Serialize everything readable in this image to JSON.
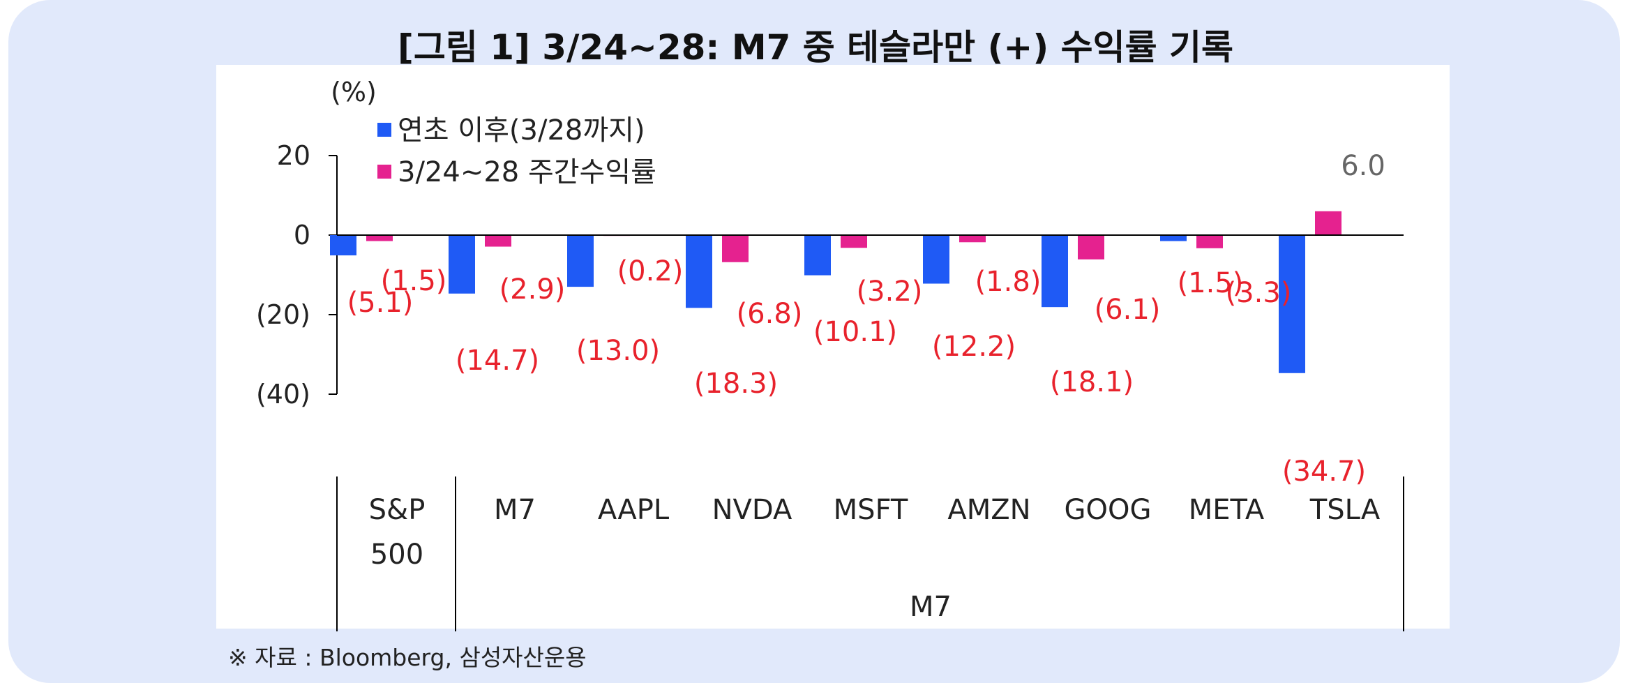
{
  "title": "[그림 1] 3/24~28: M7 중 테슬라만 (+) 수익률 기록",
  "source": "※ 자료 : Bloomberg, 삼성자산운용",
  "colors": {
    "background": "#e1e9fb",
    "ytd": "#1f5af5",
    "weekly": "#e5228f",
    "label": "#e8222c",
    "positive_label": "#666666"
  },
  "chart_data": {
    "type": "bar",
    "unit_label": "(%)",
    "ylim": [
      -40,
      20
    ],
    "yticks": [
      {
        "value": 20,
        "label": "20"
      },
      {
        "value": 0,
        "label": "0"
      },
      {
        "value": -20,
        "label": "(20)"
      },
      {
        "value": -40,
        "label": "(40)"
      }
    ],
    "categories": [
      "S&P 500",
      "M7",
      "AAPL",
      "NVDA",
      "MSFT",
      "AMZN",
      "GOOG",
      "META",
      "TSLA"
    ],
    "category_lines": [
      [
        "S&P",
        "500"
      ],
      [
        "M7"
      ],
      [
        "AAPL"
      ],
      [
        "NVDA"
      ],
      [
        "MSFT"
      ],
      [
        "AMZN"
      ],
      [
        "GOOG"
      ],
      [
        "META"
      ],
      [
        "TSLA"
      ]
    ],
    "group_label": "M7",
    "series": [
      {
        "name": "연초 이후(3/28까지)",
        "values": [
          -5.1,
          -14.7,
          -13.0,
          -18.3,
          -10.1,
          -12.2,
          -18.1,
          -1.5,
          -34.7
        ],
        "labels": [
          "(5.1)",
          "(14.7)",
          "(13.0)",
          "(18.3)",
          "(10.1)",
          "(12.2)",
          "(18.1)",
          "(1.5)",
          "(34.7)"
        ]
      },
      {
        "name": "3/24~28 주간수익률",
        "values": [
          -1.5,
          -2.9,
          -0.2,
          -6.8,
          -3.2,
          -1.8,
          -6.1,
          -3.3,
          6.0
        ],
        "labels": [
          "(1.5)",
          "(2.9)",
          "(0.2)",
          "(6.8)",
          "(3.2)",
          "(1.8)",
          "(6.1)",
          "(3.3)",
          "6.0"
        ]
      }
    ],
    "legend_position": "top-left",
    "grid": false
  }
}
